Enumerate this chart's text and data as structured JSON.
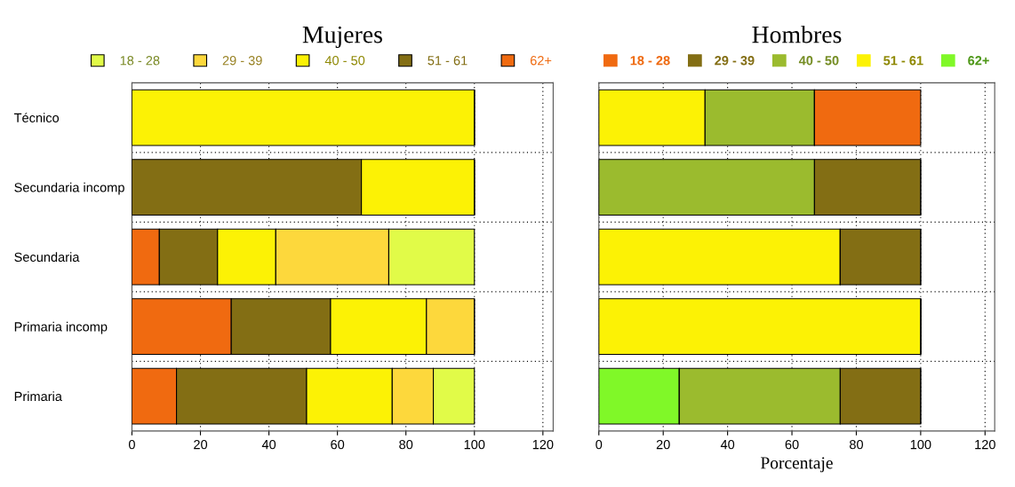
{
  "chart_data": [
    {
      "type": "bar",
      "orientation": "horizontal",
      "stacked": true,
      "title": "Mujeres",
      "categories": [
        "Técnico",
        "Secundaria incomp",
        "Secundaria",
        "Primaria incomp",
        "Primaria"
      ],
      "xlim": [
        0,
        123
      ],
      "xticks": [
        0,
        20,
        40,
        60,
        80,
        100,
        120
      ],
      "grid": true,
      "legend": "top",
      "series": [
        {
          "name": "62+",
          "color": "#f06a10",
          "values": [
            0,
            0,
            8,
            29,
            13
          ]
        },
        {
          "name": "51 - 61",
          "color": "#836e14",
          "values": [
            0,
            67,
            17,
            29,
            38
          ]
        },
        {
          "name": "40 - 50",
          "color": "#fcf205",
          "values": [
            100,
            33,
            17,
            28,
            25
          ]
        },
        {
          "name": "29 - 39",
          "color": "#fdd83c",
          "values": [
            0,
            0,
            33,
            14,
            12
          ]
        },
        {
          "name": "18 - 28",
          "color": "#e1fb48",
          "values": [
            0,
            0,
            25,
            0,
            12
          ]
        }
      ]
    },
    {
      "type": "bar",
      "orientation": "horizontal",
      "stacked": true,
      "title": "Hombres",
      "xlabel": "Porcentaje",
      "categories": [
        null,
        null,
        null,
        null,
        null
      ],
      "xlim": [
        0,
        123
      ],
      "xticks": [
        0,
        20,
        40,
        60,
        80,
        100,
        120
      ],
      "grid": true,
      "legend": "top",
      "tick_labels": "x",
      "series": [
        {
          "name": "62+",
          "color": "#80f828",
          "values": [
            0,
            0,
            0,
            0,
            25
          ]
        },
        {
          "name": "51 - 61",
          "color": "#fcf205",
          "values": [
            33,
            0,
            75,
            100,
            0
          ]
        },
        {
          "name": "40 - 50",
          "color": "#9bbb2e",
          "values": [
            34,
            67,
            0,
            0,
            50
          ]
        },
        {
          "name": "29 - 39",
          "color": "#836e14",
          "values": [
            0,
            33,
            25,
            0,
            25
          ]
        },
        {
          "name": "18 - 28",
          "color": "#f06a10",
          "values": [
            33,
            0,
            0,
            0,
            0
          ]
        }
      ]
    }
  ]
}
